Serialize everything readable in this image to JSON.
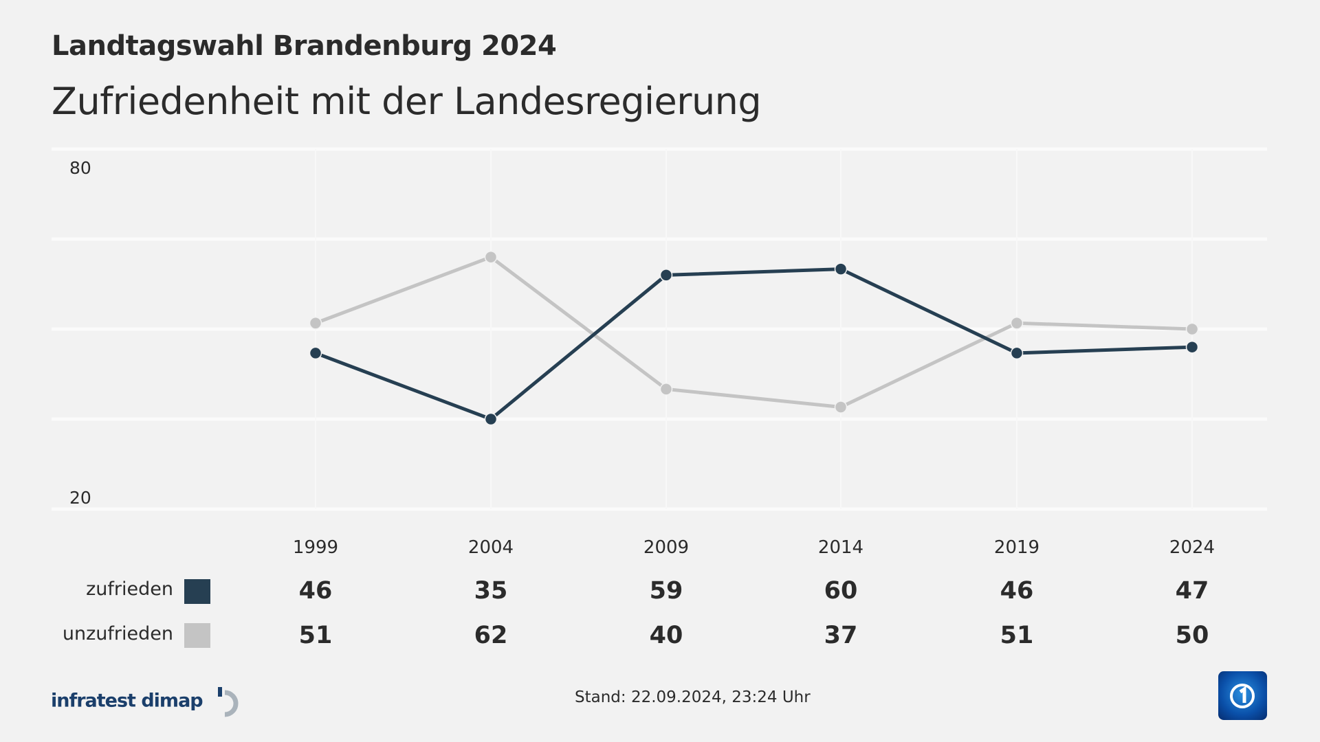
{
  "header": {
    "title": "Landtagswahl Brandenburg 2024",
    "subtitle": "Zufriedenheit mit der Landesregierung"
  },
  "chart_data": {
    "type": "line",
    "categories": [
      "1999",
      "2004",
      "2009",
      "2014",
      "2019",
      "2024"
    ],
    "series": [
      {
        "name": "zufrieden",
        "color": "#263f52",
        "values": [
          46,
          35,
          59,
          60,
          46,
          47
        ]
      },
      {
        "name": "unzufrieden",
        "color": "#c4c4c4",
        "values": [
          51,
          62,
          40,
          37,
          51,
          50
        ]
      }
    ],
    "ylim": [
      20,
      80
    ],
    "yticks_labeled": [
      "80",
      "20"
    ],
    "grid": true,
    "legend": "table below chart, left"
  },
  "footer": {
    "stand": "Stand:  22.09.2024, 23:24 Uhr",
    "source_logo": "infratest dimap",
    "channel_logo": "ARD Das Erste"
  }
}
